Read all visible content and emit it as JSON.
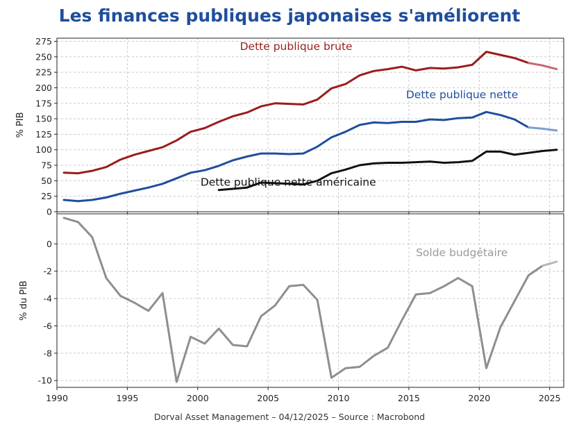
{
  "title": "Les finances publiques japonaises s'améliorent",
  "footer": "Dorval Asset Management – 04/12/2025 –   Source : Macrobond",
  "chart_data": [
    {
      "type": "line",
      "ylabel": "% PIB",
      "ylim": [
        0,
        280
      ],
      "yticks": [
        0,
        25,
        50,
        75,
        100,
        125,
        150,
        175,
        200,
        225,
        250,
        275
      ],
      "xlim": [
        1990,
        2026
      ],
      "grid": true,
      "series": [
        {
          "name": "Dette publique brute",
          "color": "#9b1c1c",
          "forecast_color": "#c8666a",
          "forecast_from": 2023.5,
          "label_anchor": [
            2003,
            261
          ],
          "points": [
            [
              1990.5,
              63
            ],
            [
              1991.5,
              62
            ],
            [
              1992.5,
              66
            ],
            [
              1993.5,
              72
            ],
            [
              1994.5,
              84
            ],
            [
              1995.5,
              92
            ],
            [
              1996.5,
              98
            ],
            [
              1997.5,
              104
            ],
            [
              1998.5,
              115
            ],
            [
              1999.5,
              129
            ],
            [
              2000.5,
              135
            ],
            [
              2001.5,
              145
            ],
            [
              2002.5,
              154
            ],
            [
              2003.5,
              160
            ],
            [
              2004.5,
              170
            ],
            [
              2005.5,
              175
            ],
            [
              2006.5,
              174
            ],
            [
              2007.5,
              173
            ],
            [
              2008.5,
              181
            ],
            [
              2009.5,
              199
            ],
            [
              2010.5,
              206
            ],
            [
              2011.5,
              220
            ],
            [
              2012.5,
              227
            ],
            [
              2013.5,
              230
            ],
            [
              2014.5,
              234
            ],
            [
              2015.5,
              228
            ],
            [
              2016.5,
              232
            ],
            [
              2017.5,
              231
            ],
            [
              2018.5,
              233
            ],
            [
              2019.5,
              237
            ],
            [
              2020.5,
              258
            ],
            [
              2021.5,
              253
            ],
            [
              2022.5,
              248
            ],
            [
              2023.5,
              240
            ],
            [
              2024.5,
              236
            ],
            [
              2025.5,
              230
            ]
          ]
        },
        {
          "name": "Dette publique nette",
          "color": "#1f4e9c",
          "forecast_color": "#7b9fd0",
          "forecast_from": 2023.5,
          "label_anchor": [
            2014.8,
            183
          ],
          "points": [
            [
              1990.5,
              19
            ],
            [
              1991.5,
              17
            ],
            [
              1992.5,
              19
            ],
            [
              1993.5,
              23
            ],
            [
              1994.5,
              29
            ],
            [
              1995.5,
              34
            ],
            [
              1996.5,
              39
            ],
            [
              1997.5,
              45
            ],
            [
              1998.5,
              54
            ],
            [
              1999.5,
              63
            ],
            [
              2000.5,
              67
            ],
            [
              2001.5,
              74
            ],
            [
              2002.5,
              83
            ],
            [
              2003.5,
              89
            ],
            [
              2004.5,
              94
            ],
            [
              2005.5,
              94
            ],
            [
              2006.5,
              93
            ],
            [
              2007.5,
              94
            ],
            [
              2008.5,
              105
            ],
            [
              2009.5,
              120
            ],
            [
              2010.5,
              129
            ],
            [
              2011.5,
              140
            ],
            [
              2012.5,
              144
            ],
            [
              2013.5,
              143
            ],
            [
              2014.5,
              145
            ],
            [
              2015.5,
              145
            ],
            [
              2016.5,
              149
            ],
            [
              2017.5,
              148
            ],
            [
              2018.5,
              151
            ],
            [
              2019.5,
              152
            ],
            [
              2020.5,
              161
            ],
            [
              2021.5,
              156
            ],
            [
              2022.5,
              149
            ],
            [
              2023.5,
              136
            ],
            [
              2024.5,
              134
            ],
            [
              2025.5,
              131
            ]
          ]
        },
        {
          "name": "Dette publique nette américaine",
          "color": "#111111",
          "label_anchor": [
            2000.2,
            42
          ],
          "points": [
            [
              2001.5,
              35
            ],
            [
              2002.5,
              37
            ],
            [
              2003.5,
              39
            ],
            [
              2004.5,
              47
            ],
            [
              2005.5,
              46
            ],
            [
              2006.5,
              45
            ],
            [
              2007.5,
              44
            ],
            [
              2008.5,
              50
            ],
            [
              2009.5,
              62
            ],
            [
              2010.5,
              68
            ],
            [
              2011.5,
              75
            ],
            [
              2012.5,
              78
            ],
            [
              2013.5,
              79
            ],
            [
              2014.5,
              79
            ],
            [
              2015.5,
              80
            ],
            [
              2016.5,
              81
            ],
            [
              2017.5,
              79
            ],
            [
              2018.5,
              80
            ],
            [
              2019.5,
              82
            ],
            [
              2020.5,
              97
            ],
            [
              2021.5,
              97
            ],
            [
              2022.5,
              92
            ],
            [
              2023.5,
              95
            ],
            [
              2024.5,
              98
            ],
            [
              2025.5,
              100
            ]
          ]
        }
      ]
    },
    {
      "type": "line",
      "ylabel": "% du PIB",
      "ylim": [
        -10.5,
        2.2
      ],
      "yticks": [
        -10,
        -8,
        -6,
        -4,
        -2,
        0
      ],
      "xlim": [
        1990,
        2026
      ],
      "xticks": [
        1990,
        1995,
        2000,
        2005,
        2010,
        2015,
        2020,
        2025
      ],
      "grid": true,
      "series": [
        {
          "name": "Solde budgétaire",
          "color": "#8e8e8e",
          "forecast_color": "#b6b6b6",
          "forecast_from": 2024.5,
          "label_anchor": [
            2015.5,
            -0.9
          ],
          "points": [
            [
              1990.5,
              1.9
            ],
            [
              1991.5,
              1.6
            ],
            [
              1992.5,
              0.5
            ],
            [
              1993.5,
              -2.5
            ],
            [
              1994.5,
              -3.8
            ],
            [
              1995.5,
              -4.3
            ],
            [
              1996.5,
              -4.9
            ],
            [
              1997.5,
              -3.6
            ],
            [
              1998.5,
              -10.1
            ],
            [
              1999.5,
              -6.8
            ],
            [
              2000.5,
              -7.3
            ],
            [
              2001.5,
              -6.2
            ],
            [
              2002.5,
              -7.4
            ],
            [
              2003.5,
              -7.5
            ],
            [
              2004.5,
              -5.3
            ],
            [
              2005.5,
              -4.5
            ],
            [
              2006.5,
              -3.1
            ],
            [
              2007.5,
              -3.0
            ],
            [
              2008.5,
              -4.1
            ],
            [
              2009.5,
              -9.8
            ],
            [
              2010.5,
              -9.1
            ],
            [
              2011.5,
              -9.0
            ],
            [
              2012.5,
              -8.2
            ],
            [
              2013.5,
              -7.6
            ],
            [
              2014.5,
              -5.6
            ],
            [
              2015.5,
              -3.7
            ],
            [
              2016.5,
              -3.6
            ],
            [
              2017.5,
              -3.1
            ],
            [
              2018.5,
              -2.5
            ],
            [
              2019.5,
              -3.1
            ],
            [
              2020.5,
              -9.1
            ],
            [
              2021.5,
              -6.1
            ],
            [
              2022.5,
              -4.2
            ],
            [
              2023.5,
              -2.3
            ],
            [
              2024.5,
              -1.6
            ],
            [
              2025.5,
              -1.3
            ]
          ]
        }
      ]
    }
  ]
}
